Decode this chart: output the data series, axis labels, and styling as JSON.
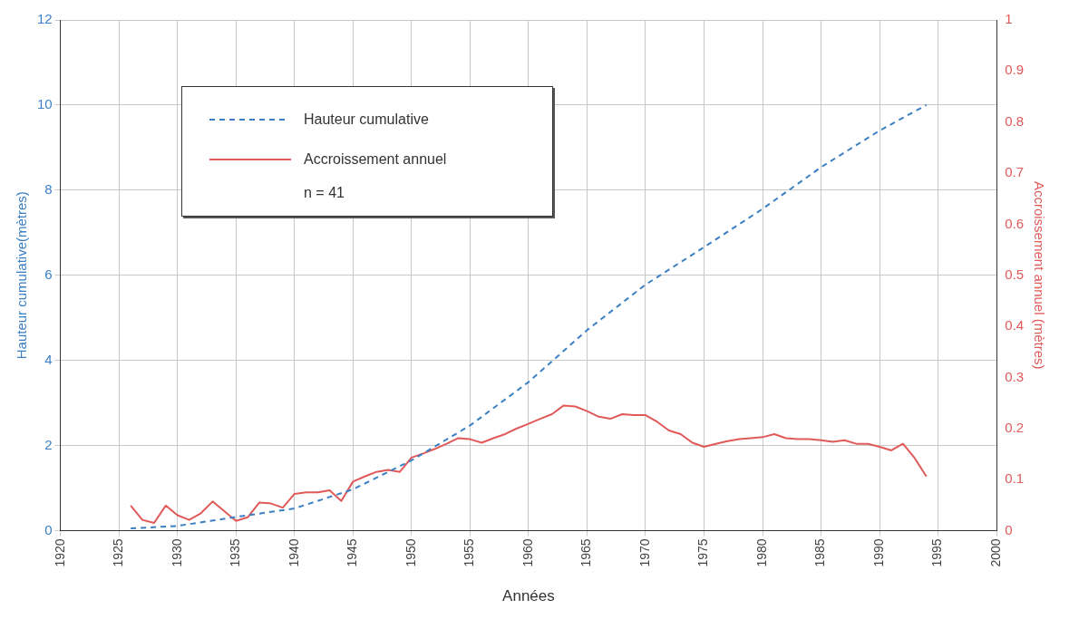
{
  "chart_data": {
    "type": "line",
    "xlabel": "Années",
    "ylabel": "Hauteur cumulative(mètres)",
    "y2label": "Accroissement annuel (mètres)",
    "xlim": [
      1920,
      2000
    ],
    "xticks": [
      1920,
      1925,
      1930,
      1935,
      1940,
      1945,
      1950,
      1955,
      1960,
      1965,
      1970,
      1975,
      1980,
      1985,
      1990,
      1995,
      2000
    ],
    "ylim": [
      0,
      12
    ],
    "yticks": [
      0,
      2,
      4,
      6,
      8,
      10,
      12
    ],
    "y2lim": [
      0,
      1
    ],
    "y2ticks": [
      0,
      0.1,
      0.2,
      0.3,
      0.4,
      0.5,
      0.6,
      0.7,
      0.8,
      0.9,
      1
    ],
    "grid": true,
    "legend": "top left",
    "marker": "none",
    "annotations": [
      "n = 41"
    ],
    "series": [
      {
        "name": "Hauteur cumulative",
        "color": "#3b7fc4",
        "line_style": "dashed",
        "x": [
          1926,
          1930,
          1935,
          1940,
          1945,
          1950,
          1955,
          1960,
          1965,
          1970,
          1975,
          1980,
          1985,
          1990,
          1994
        ],
        "values": [
          0.05,
          0.11,
          0.32,
          0.52,
          0.97,
          1.65,
          2.47,
          3.49,
          4.71,
          5.78,
          6.66,
          7.56,
          8.54,
          9.4,
          10.0
        ]
      },
      {
        "name": "Accroissement annuel",
        "color": "#e05a5a",
        "line_style": "solid",
        "axis": "y2",
        "x": [
          1926,
          1927,
          1928,
          1929,
          1930,
          1931,
          1932,
          1933,
          1934,
          1935,
          1936,
          1937,
          1938,
          1939,
          1940,
          1941,
          1942,
          1943,
          1944,
          1945,
          1946,
          1947,
          1948,
          1949,
          1950,
          1951,
          1952,
          1953,
          1954,
          1955,
          1956,
          1957,
          1958,
          1959,
          1960,
          1961,
          1962,
          1963,
          1964,
          1965,
          1966,
          1967,
          1968,
          1969,
          1970,
          1971,
          1972,
          1973,
          1974,
          1975,
          1976,
          1977,
          1978,
          1979,
          1980,
          1981,
          1982,
          1983,
          1984,
          1985,
          1986,
          1987,
          1988,
          1989,
          1990,
          1991,
          1992,
          1993,
          1994
        ],
        "values": [
          0.049,
          0.021,
          0.015,
          0.049,
          0.03,
          0.021,
          0.034,
          0.057,
          0.038,
          0.019,
          0.026,
          0.055,
          0.053,
          0.045,
          0.072,
          0.075,
          0.075,
          0.079,
          0.058,
          0.096,
          0.106,
          0.115,
          0.119,
          0.115,
          0.143,
          0.151,
          0.16,
          0.17,
          0.181,
          0.179,
          0.172,
          0.181,
          0.189,
          0.2,
          0.209,
          0.219,
          0.228,
          0.245,
          0.243,
          0.234,
          0.223,
          0.219,
          0.228,
          0.226,
          0.226,
          0.213,
          0.196,
          0.189,
          0.172,
          0.164,
          0.17,
          0.175,
          0.179,
          0.181,
          0.183,
          0.189,
          0.181,
          0.179,
          0.179,
          0.177,
          0.174,
          0.177,
          0.17,
          0.17,
          0.164,
          0.157,
          0.17,
          0.142,
          0.106
        ]
      }
    ]
  }
}
